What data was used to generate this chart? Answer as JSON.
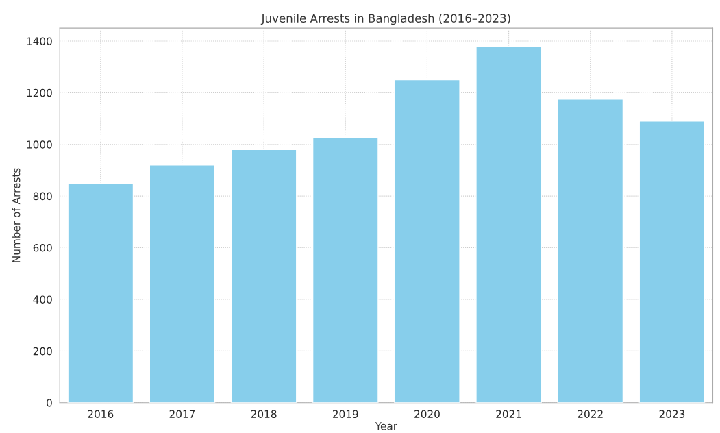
{
  "chart_data": {
    "type": "bar",
    "title": "Juvenile Arrests in Bangladesh (2016–2023)",
    "xlabel": "Year",
    "ylabel": "Number of Arrests",
    "categories": [
      "2016",
      "2017",
      "2018",
      "2019",
      "2020",
      "2021",
      "2022",
      "2023"
    ],
    "values": [
      850,
      920,
      980,
      1025,
      1250,
      1380,
      1175,
      1090
    ],
    "color": "#87ceeb",
    "ylim": [
      0,
      1450
    ],
    "yticks": [
      0,
      200,
      400,
      600,
      800,
      1000,
      1200,
      1400
    ],
    "grid": true
  }
}
